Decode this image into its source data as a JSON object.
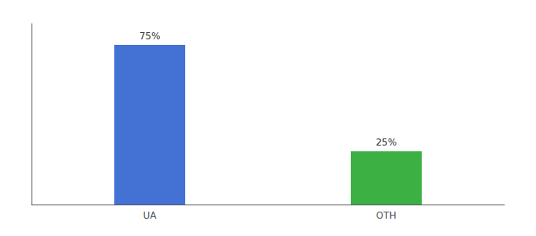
{
  "chart_data": {
    "type": "bar",
    "categories": [
      "UA",
      "OTH"
    ],
    "values": [
      75,
      25
    ],
    "value_labels": [
      "75%",
      "25%"
    ],
    "colors": [
      "#4472d4",
      "#3cb043"
    ],
    "ylim": [
      0,
      85
    ],
    "data_labels": true,
    "tick_labels": "x",
    "grid": false
  }
}
